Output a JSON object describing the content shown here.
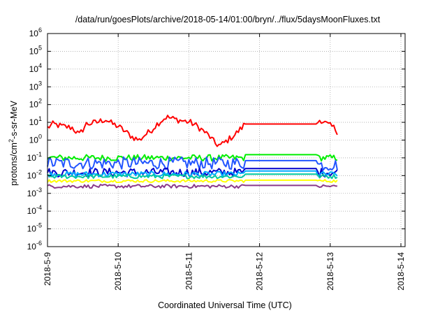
{
  "chart_data": {
    "type": "line",
    "title": "/data/run/goesPlots/archive/2018-05-14/01:00/bryn/../flux/5daysMoonFluxes.txt",
    "xlabel": "Coordinated Universal Time (UTC)",
    "ylabel": {
      "base": "protons/cm",
      "sup": "2",
      "rest": "-s-sr-MeV"
    },
    "x_ticks": [
      "2018-5-9",
      "2018-5-10",
      "2018-5-11",
      "2018-5-12",
      "2018-5-13",
      "2018-5-14"
    ],
    "xlim": [
      0,
      5.05
    ],
    "y_scale": "log",
    "ylim_exp": [
      -6,
      6
    ],
    "y_tick_base": "10",
    "y_tick_exponents": [
      "-6",
      "-5",
      "-4",
      "-3",
      "-2",
      "-1",
      "0",
      "1",
      "2",
      "3",
      "4",
      "5",
      "6"
    ],
    "grid": true,
    "series": [
      {
        "color": "#ff0000",
        "anchors": [
          [
            0,
            5
          ],
          [
            0.08,
            8
          ],
          [
            0.2,
            6
          ],
          [
            0.35,
            5
          ],
          [
            0.45,
            2
          ],
          [
            0.55,
            8
          ],
          [
            0.7,
            10
          ],
          [
            0.82,
            15
          ],
          [
            0.92,
            8
          ],
          [
            1.0,
            6
          ],
          [
            1.1,
            3
          ],
          [
            1.2,
            1.5
          ],
          [
            1.3,
            1
          ],
          [
            1.38,
            2
          ],
          [
            1.45,
            3
          ],
          [
            1.55,
            8
          ],
          [
            1.68,
            20
          ],
          [
            1.8,
            15
          ],
          [
            1.92,
            12
          ],
          [
            2.02,
            10
          ],
          [
            2.12,
            6
          ],
          [
            2.22,
            3
          ],
          [
            2.3,
            1.5
          ],
          [
            2.38,
            0.6
          ],
          [
            2.45,
            0.5
          ],
          [
            2.55,
            1
          ],
          [
            2.65,
            2
          ],
          [
            2.75,
            5
          ],
          [
            2.79,
            8
          ],
          [
            3.8,
            8
          ],
          [
            3.8,
            8
          ],
          [
            3.86,
            15
          ],
          [
            3.95,
            8
          ],
          [
            4.05,
            5
          ],
          [
            4.1,
            3
          ]
        ],
        "noise": 0.18
      },
      {
        "color": "#00ee00",
        "anchors": [
          [
            0,
            0.1
          ],
          [
            2.79,
            0.1
          ],
          [
            2.79,
            0.15
          ],
          [
            3.8,
            0.15
          ],
          [
            3.8,
            0.1
          ],
          [
            4.1,
            0.1
          ]
        ],
        "noise": 0.18
      },
      {
        "color": "#2255ff",
        "anchors": [
          [
            0,
            0.05
          ],
          [
            2.79,
            0.05
          ],
          [
            2.79,
            0.07
          ],
          [
            3.8,
            0.07
          ],
          [
            3.8,
            0.04
          ],
          [
            4.1,
            0.04
          ]
        ],
        "noise": 0.35
      },
      {
        "color": "#0000cc",
        "anchors": [
          [
            0,
            0.015
          ],
          [
            2.79,
            0.015
          ],
          [
            2.79,
            0.025
          ],
          [
            3.8,
            0.025
          ],
          [
            3.8,
            0.015
          ],
          [
            4.1,
            0.015
          ]
        ],
        "noise": 0.25
      },
      {
        "color": "#00aaff",
        "anchors": [
          [
            0,
            0.012
          ],
          [
            2.79,
            0.012
          ],
          [
            2.79,
            0.018
          ],
          [
            3.8,
            0.018
          ],
          [
            3.8,
            0.012
          ],
          [
            4.1,
            0.012
          ]
        ],
        "noise": 0.15
      },
      {
        "color": "#00c8a0",
        "anchors": [
          [
            0,
            0.009
          ],
          [
            2.79,
            0.009
          ],
          [
            2.79,
            0.012
          ],
          [
            3.8,
            0.012
          ],
          [
            3.8,
            0.009
          ],
          [
            4.1,
            0.009
          ]
        ],
        "noise": 0.12
      },
      {
        "color": "#ffff00",
        "anchors": [
          [
            0,
            0.005
          ],
          [
            2.79,
            0.005
          ],
          [
            2.79,
            0.0055
          ],
          [
            3.8,
            0.0055
          ],
          [
            3.8,
            0.005
          ],
          [
            4.1,
            0.005
          ]
        ],
        "noise": 0.08
      },
      {
        "color": "#8b3a8b",
        "anchors": [
          [
            0,
            0.0025
          ],
          [
            2.79,
            0.0025
          ],
          [
            2.79,
            0.0028
          ],
          [
            3.8,
            0.0028
          ],
          [
            3.8,
            0.0025
          ],
          [
            4.1,
            0.0025
          ]
        ],
        "noise": 0.1
      }
    ]
  }
}
